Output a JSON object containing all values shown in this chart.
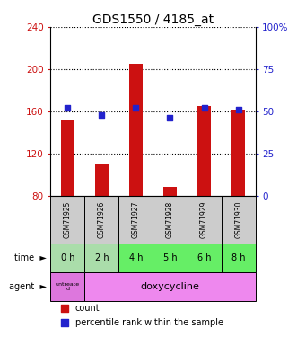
{
  "title": "GDS1550 / 4185_at",
  "samples": [
    "GSM71925",
    "GSM71926",
    "GSM71927",
    "GSM71928",
    "GSM71929",
    "GSM71930"
  ],
  "time_labels": [
    "0 h",
    "2 h",
    "4 h",
    "5 h",
    "6 h",
    "8 h"
  ],
  "count_values": [
    152,
    110,
    205,
    88,
    165,
    162
  ],
  "percentile_values": [
    52,
    48,
    52,
    46,
    52,
    51
  ],
  "ylim_left": [
    80,
    240
  ],
  "ylim_right": [
    0,
    100
  ],
  "yticks_left": [
    80,
    120,
    160,
    200,
    240
  ],
  "yticks_right": [
    0,
    25,
    50,
    75,
    100
  ],
  "bar_color": "#cc1111",
  "dot_color": "#2222cc",
  "bar_width": 0.4,
  "bg_color_plot": "#ffffff",
  "bg_color_samples": "#cccccc",
  "time_bg_colors": [
    "#aaddaa",
    "#aaddaa",
    "#66ee66",
    "#66ee66",
    "#66ee66",
    "#66ee66"
  ],
  "agent_color_untreated": "#dd77dd",
  "agent_color_doxy": "#ee88ee",
  "legend_count_color": "#cc1111",
  "legend_pct_color": "#2222cc"
}
